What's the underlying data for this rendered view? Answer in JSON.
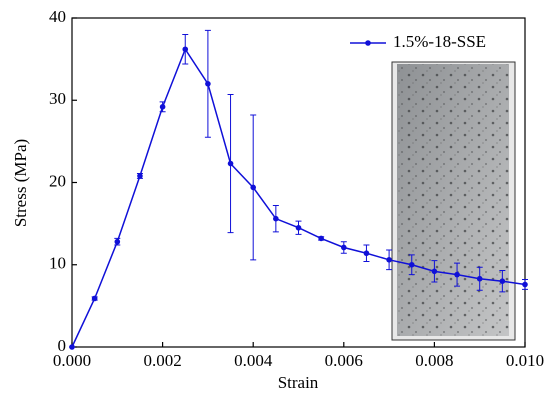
{
  "chart_data": {
    "type": "line",
    "x_label": "Strain",
    "y_label": "Stress (MPa)",
    "x": [
      0,
      0.0005,
      0.001,
      0.0015,
      0.002,
      0.0025,
      0.003,
      0.0035,
      0.004,
      0.0045,
      0.005,
      0.0055,
      0.006,
      0.0065,
      0.007,
      0.0075,
      0.008,
      0.0085,
      0.009,
      0.0095,
      0.01
    ],
    "series": [
      {
        "name": "1.5%-18-SSE",
        "color": "#1010d8",
        "values": [
          0,
          5.9,
          12.8,
          20.8,
          29.2,
          36.2,
          32.0,
          22.3,
          19.4,
          15.6,
          14.5,
          13.2,
          12.1,
          11.4,
          10.6,
          10.0,
          9.2,
          8.8,
          8.3,
          8.0,
          7.6
        ],
        "errors": [
          0,
          0.2,
          0.4,
          0.3,
          0.6,
          1.8,
          6.5,
          8.4,
          8.8,
          1.6,
          0.8,
          0.2,
          0.7,
          1.0,
          1.2,
          1.2,
          1.3,
          1.4,
          1.4,
          1.3,
          0.6
        ]
      }
    ],
    "xlim": [
      0,
      0.01
    ],
    "xticks": [
      {
        "value": 0,
        "label": "0.000"
      },
      {
        "value": 0.002,
        "label": "0.002"
      },
      {
        "value": 0.004,
        "label": "0.004"
      },
      {
        "value": 0.006,
        "label": "0.006"
      },
      {
        "value": 0.008,
        "label": "0.008"
      },
      {
        "value": 0.01,
        "label": "0.010"
      }
    ],
    "ylim": [
      0,
      40
    ],
    "yticks": [
      0,
      10,
      20,
      30,
      40
    ],
    "legend": "upper right"
  }
}
